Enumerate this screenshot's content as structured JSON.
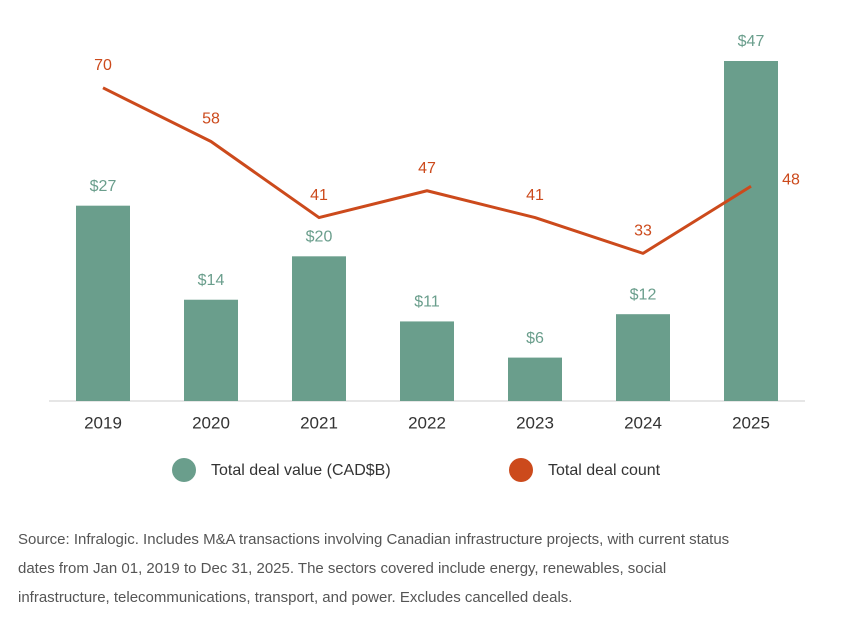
{
  "chart_data": {
    "type": "combo",
    "categories": [
      "2019",
      "2020",
      "2021",
      "2022",
      "2023",
      "2024",
      "2025"
    ],
    "series": [
      {
        "name": "Total deal value (CAD$B)",
        "type": "bar",
        "color": "#6a9e8c",
        "values": [
          27,
          14,
          20,
          11,
          6,
          12,
          47
        ],
        "value_labels": [
          "$27",
          "$14",
          "$20",
          "$11",
          "$6",
          "$12",
          "$47"
        ]
      },
      {
        "name": "Total deal count",
        "type": "line",
        "axis": "y2",
        "color": "#cc4a1c",
        "values": [
          70,
          58,
          41,
          47,
          41,
          33,
          48
        ]
      }
    ],
    "ylim": [
      0,
      47
    ],
    "y2lim": [
      0,
      76
    ],
    "note": [
      "Source: Infralogic. Includes M&A transactions involving Canadian infrastructure projects, with current status",
      "dates from Jan 01, 2019 to Dec 31, 2025. The sectors covered include energy, renewables, social",
      "infrastructure, telecommunications, transport, and power. Excludes cancelled deals."
    ]
  }
}
